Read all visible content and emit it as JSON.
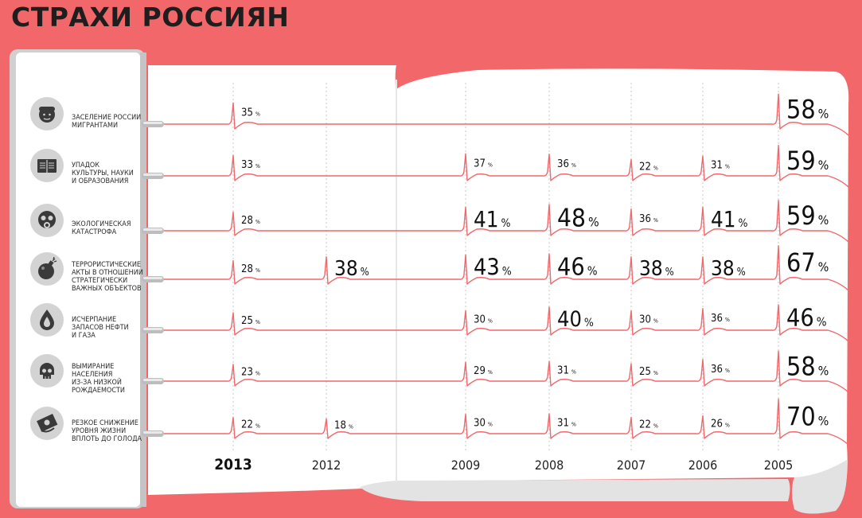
{
  "title": "СТРАХИ РОССИЯН",
  "accent": "#f2676a",
  "chart_data": {
    "type": "line",
    "title": "СТРАХИ РОССИЯН",
    "unit": "%",
    "years": [
      "2013",
      "2012",
      "2009",
      "2008",
      "2007",
      "2006",
      "2005"
    ],
    "highlight_year": "2013",
    "series": [
      {
        "name": "ЗАСЕЛЕНИЕ РОССИИ МИГРАНТАМИ",
        "icon": "migrant-face-icon",
        "values": [
          35,
          null,
          null,
          null,
          null,
          null,
          58
        ]
      },
      {
        "name": "УПАДОК КУЛЬТУРЫ, НАУКИ И ОБРАЗОВАНИЯ",
        "icon": "open-book-icon",
        "values": [
          33,
          null,
          37,
          36,
          22,
          31,
          59
        ]
      },
      {
        "name": "ЭКОЛОГИЧЕСКАЯ КАТАСТРОФА",
        "icon": "gas-mask-icon",
        "values": [
          28,
          null,
          41,
          48,
          36,
          41,
          59
        ]
      },
      {
        "name": "ТЕРРОРИСТИЧЕСКИЕ АКТЫ В ОТНОШЕНИИ СТРАТЕГИЧЕСКИ ВАЖНЫХ ОБЪЕКТОВ",
        "icon": "bomb-icon",
        "values": [
          28,
          38,
          43,
          46,
          38,
          38,
          67
        ]
      },
      {
        "name": "ИСЧЕРПАНИЕ ЗАПАСОВ НЕФТИ И ГАЗА",
        "icon": "oil-drop-icon",
        "values": [
          25,
          null,
          30,
          40,
          30,
          36,
          46
        ]
      },
      {
        "name": "ВЫМИРАНИЕ НАСЕЛЕНИЯ ИЗ-ЗА НИЗКОЙ РОЖДАЕМОСТИ",
        "icon": "skull-icon",
        "values": [
          23,
          null,
          29,
          31,
          25,
          36,
          58
        ]
      },
      {
        "name": "РЕЗКОЕ СНИЖЕНИЕ УРОВНЯ ЖИЗНИ ВПЛОТЬ ДО ГОЛОДА",
        "icon": "banknote-icon",
        "values": [
          22,
          18,
          30,
          31,
          22,
          26,
          70
        ]
      }
    ],
    "label_lines": [
      [
        "ЗАСЕЛЕНИЕ РОССИИ",
        "МИГРАНТАМИ"
      ],
      [
        "УПАДОК",
        "КУЛЬТУРЫ, НАУКИ",
        "И ОБРАЗОВАНИЯ"
      ],
      [
        "ЭКОЛОГИЧЕСКАЯ",
        "КАТАСТРОФА"
      ],
      [
        "ТЕРРОРИСТИЧЕСКИЕ",
        "АКТЫ В ОТНОШЕНИИ",
        "СТРАТЕГИЧЕСКИ",
        "ВАЖНЫХ ОБЪЕКТОВ"
      ],
      [
        "ИСЧЕРПАНИЕ",
        "ЗАПАСОВ НЕФТИ",
        "И ГАЗА"
      ],
      [
        "ВЫМИРАНИЕ",
        "НАСЕЛЕНИЯ",
        "ИЗ-ЗА НИЗКОЙ",
        "РОЖДАЕМОСТИ"
      ],
      [
        "РЕЗКОЕ СНИЖЕНИЕ",
        "УРОВНЯ ЖИЗНИ",
        "ВПЛОТЬ ДО ГОЛОДА"
      ]
    ]
  }
}
